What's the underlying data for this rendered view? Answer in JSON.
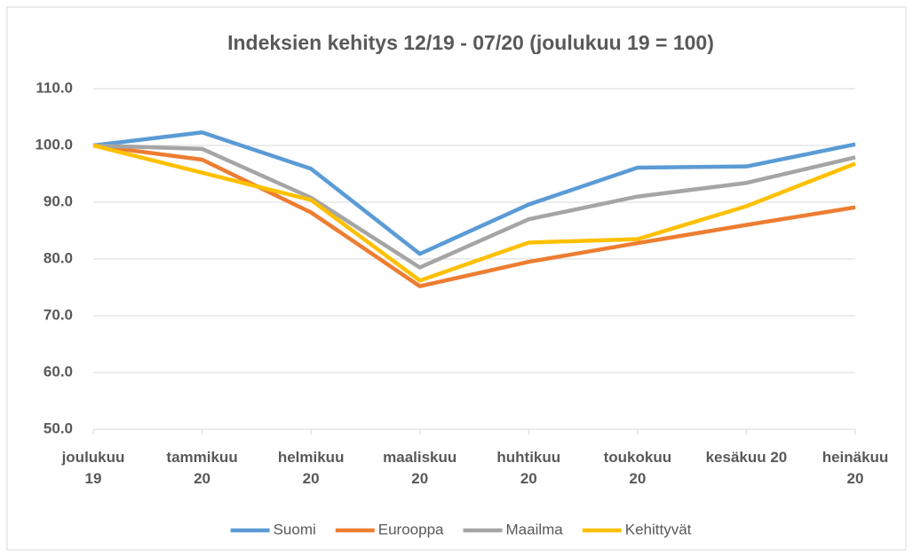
{
  "chart_data": {
    "type": "line",
    "title": "Indeksien kehitys 12/19 - 07/20 (joulukuu 19 = 100)",
    "categories": [
      "joulukuu\n19",
      "tammikuu\n20",
      "helmikuu\n20",
      "maaliskuu\n20",
      "huhtikuu\n20",
      "toukokuu\n20",
      "kesäkuu 20",
      "heinäkuu\n20"
    ],
    "series": [
      {
        "name": "Suomi",
        "color": "#5b9bd5",
        "values": [
          100,
          102.3,
          95.9,
          80.9,
          89.6,
          96.1,
          96.3,
          100.2
        ]
      },
      {
        "name": "Eurooppa",
        "color": "#ed7d31",
        "values": [
          100,
          97.5,
          88.2,
          75.2,
          79.5,
          82.8,
          86.0,
          89.1
        ]
      },
      {
        "name": "Maailma",
        "color": "#a5a5a5",
        "values": [
          100,
          99.4,
          90.8,
          78.5,
          87.0,
          91.0,
          93.4,
          97.9
        ]
      },
      {
        "name": "Kehittyvät",
        "color": "#ffc000",
        "values": [
          100,
          95.2,
          90.4,
          76.2,
          82.9,
          83.5,
          89.3,
          96.8
        ]
      }
    ],
    "ylim": [
      50,
      110
    ],
    "yticks": [
      {
        "value": 50,
        "label": "50.0"
      },
      {
        "value": 60,
        "label": "60.0"
      },
      {
        "value": 70,
        "label": "70.0"
      },
      {
        "value": 80,
        "label": "80.0"
      },
      {
        "value": 90,
        "label": "90.0"
      },
      {
        "value": 100,
        "label": "100.0"
      },
      {
        "value": 110,
        "label": "110.0"
      }
    ],
    "grid": true,
    "legend": "bottom"
  }
}
